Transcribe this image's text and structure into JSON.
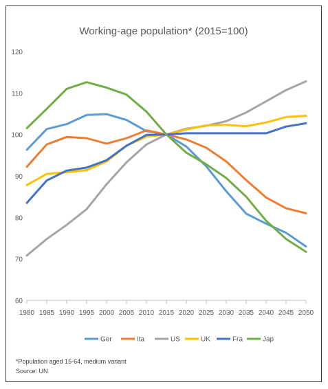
{
  "chart_data": {
    "type": "line",
    "title": "Working-age population* (2015=100)",
    "xlabel": "",
    "ylabel": "",
    "x": [
      1980,
      1985,
      1990,
      1995,
      2000,
      2005,
      2010,
      2015,
      2020,
      2025,
      2030,
      2035,
      2040,
      2045,
      2050
    ],
    "ylim": [
      60,
      120
    ],
    "yticks": [
      60,
      70,
      80,
      90,
      100,
      110,
      120
    ],
    "grid": false,
    "legend_position": "bottom",
    "series": [
      {
        "name": "Ger",
        "color": "#5b9bd5",
        "values": [
          96.3,
          101.3,
          102.5,
          104.7,
          104.9,
          103.5,
          100.8,
          100,
          97.1,
          92.3,
          86.3,
          80.9,
          78.5,
          76.3,
          73.0
        ]
      },
      {
        "name": "Ita",
        "color": "#ed7d31",
        "values": [
          92.2,
          97.6,
          99.4,
          99.1,
          97.8,
          99.1,
          101.0,
          100,
          98.8,
          96.8,
          93.5,
          89.0,
          84.8,
          82.2,
          81.0
        ]
      },
      {
        "name": "US",
        "color": "#a5a5a5",
        "values": [
          70.8,
          74.8,
          78.2,
          82.0,
          88.0,
          93.3,
          97.6,
          100,
          101.4,
          102.1,
          103.2,
          105.3,
          108.0,
          110.7,
          112.8
        ]
      },
      {
        "name": "UK",
        "color": "#ffc000",
        "values": [
          87.8,
          90.5,
          90.9,
          91.4,
          93.5,
          97.3,
          99.5,
          100,
          101.2,
          102.2,
          102.3,
          102.0,
          102.9,
          104.2,
          104.5
        ]
      },
      {
        "name": "Fra",
        "color": "#4472c4",
        "values": [
          83.5,
          88.9,
          91.3,
          92.0,
          93.8,
          97.3,
          99.9,
          100,
          100.3,
          100.3,
          100.3,
          100.3,
          100.3,
          101.9,
          102.7
        ]
      },
      {
        "name": "Jap",
        "color": "#70ad47",
        "values": [
          101.5,
          106.2,
          111.0,
          112.6,
          111.3,
          109.6,
          105.5,
          100,
          95.6,
          92.8,
          89.5,
          85.0,
          79.2,
          74.8,
          71.7
        ]
      }
    ]
  },
  "footnote": "*Population aged 15-64, medium variant",
  "source": "Source: UN"
}
